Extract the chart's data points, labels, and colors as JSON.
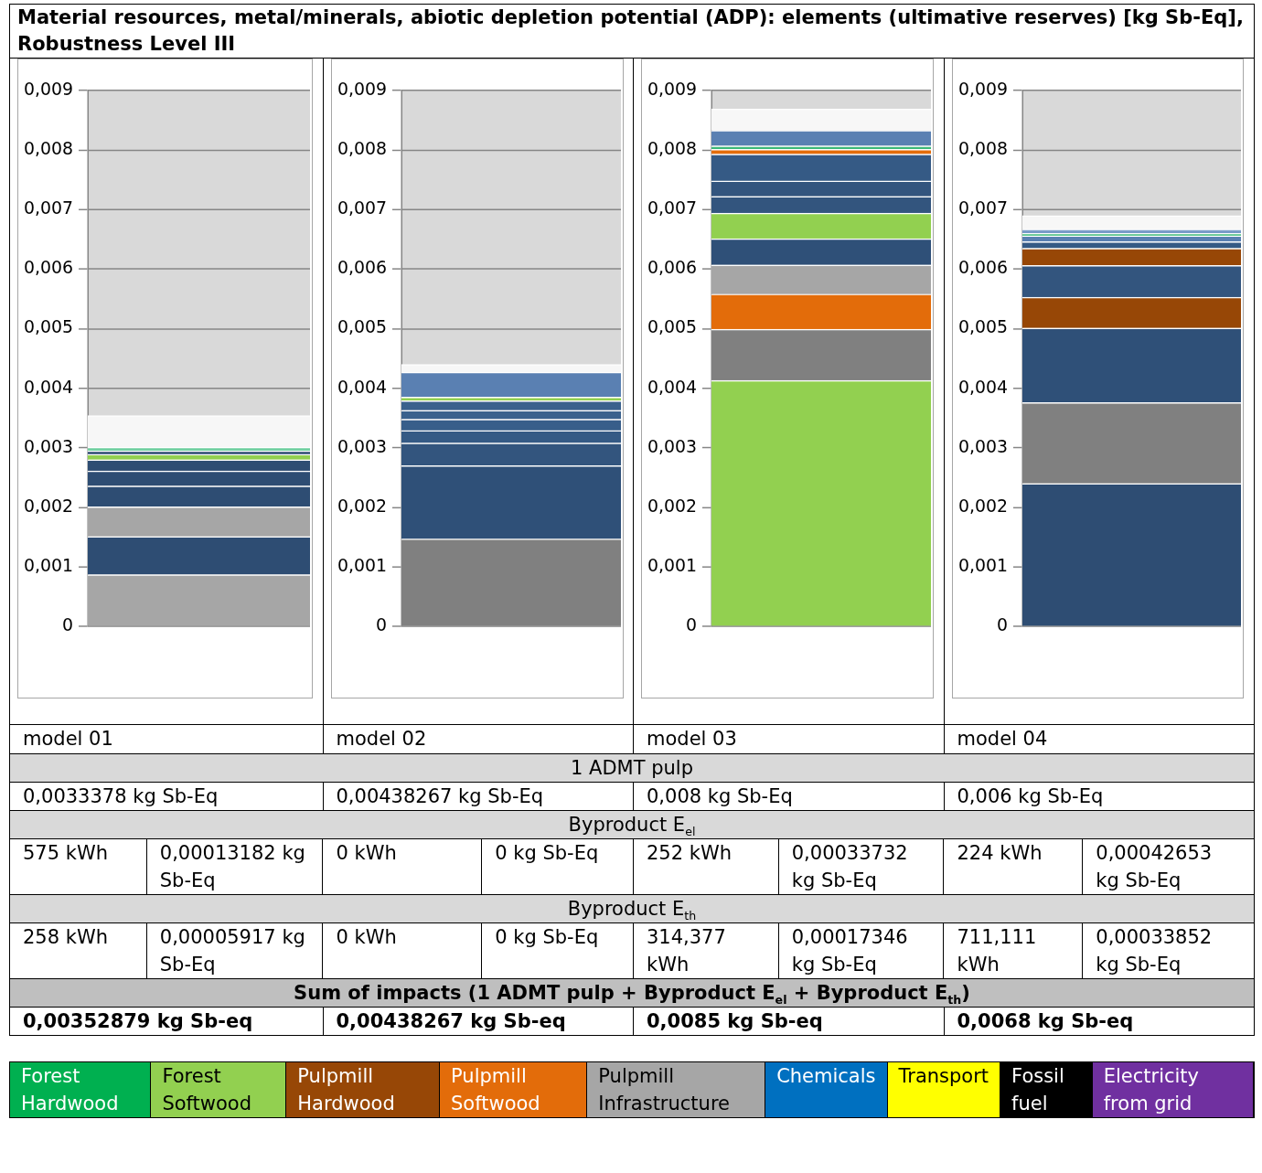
{
  "chart_data": [
    {
      "type": "bar",
      "title": "Material resources, metal/minerals, abiotic depletion potential (ADP): elements (ultimative reserves) [kg Sb-Eq], Robustness Level III",
      "xlabel": "model 01",
      "stacked": true,
      "categories": [
        null
      ],
      "ylim": [
        0,
        0.009
      ],
      "yticks": [
        {
          "value": 0,
          "label": "0"
        },
        {
          "value": 0.001,
          "label": "0,001"
        },
        {
          "value": 0.002,
          "label": "0,002"
        },
        {
          "value": 0.003,
          "label": "0,003"
        },
        {
          "value": 0.004,
          "label": "0,004"
        },
        {
          "value": 0.005,
          "label": "0,005"
        },
        {
          "value": 0.006,
          "label": "0,006"
        },
        {
          "value": 0.007,
          "label": "0,007"
        },
        {
          "value": 0.008,
          "label": "0,008"
        },
        {
          "value": 0.009,
          "label": "0,009"
        }
      ],
      "grid": "y",
      "tick_labels": "y",
      "series": [
        {
          "color": "#a6a6a6",
          "values": [
            0.00087
          ]
        },
        {
          "color": "#2e4d73",
          "values": [
            0.00064
          ]
        },
        {
          "color": "#a6a6a6",
          "values": [
            0.0005
          ]
        },
        {
          "color": "#2e4d73",
          "values": [
            0.00035
          ]
        },
        {
          "color": "#2e4d73",
          "values": [
            0.00025
          ]
        },
        {
          "color": "#2e4d73",
          "values": [
            0.00019
          ]
        },
        {
          "color": "#92d050",
          "values": [
            9e-05
          ]
        },
        {
          "color": "#2e4d73",
          "values": [
            6e-05
          ]
        },
        {
          "color": "#6fcf9f",
          "values": [
            6e-05
          ]
        },
        {
          "color": "#f7f7f7",
          "values": [
            0.00053
          ]
        }
      ]
    },
    {
      "type": "bar",
      "xlabel": "model 02",
      "stacked": true,
      "categories": [
        null
      ],
      "ylim": [
        0,
        0.009
      ],
      "yticks": [
        {
          "value": 0,
          "label": "0"
        },
        {
          "value": 0.001,
          "label": "0,001"
        },
        {
          "value": 0.002,
          "label": "0,002"
        },
        {
          "value": 0.003,
          "label": "0,003"
        },
        {
          "value": 0.004,
          "label": "0,004"
        },
        {
          "value": 0.005,
          "label": "0,005"
        },
        {
          "value": 0.006,
          "label": "0,006"
        },
        {
          "value": 0.007,
          "label": "0,007"
        },
        {
          "value": 0.008,
          "label": "0,008"
        },
        {
          "value": 0.009,
          "label": "0,009"
        }
      ],
      "grid": "y",
      "tick_labels": "y",
      "series": [
        {
          "color": "#808080",
          "values": [
            0.00147
          ]
        },
        {
          "color": "#2f5078",
          "values": [
            0.00123
          ]
        },
        {
          "color": "#33557e",
          "values": [
            0.00038
          ]
        },
        {
          "color": "#355a85",
          "values": [
            0.00021
          ]
        },
        {
          "color": "#385e8a",
          "values": [
            0.00019
          ]
        },
        {
          "color": "#3a618d",
          "values": [
            0.00015
          ]
        },
        {
          "color": "#3a618d",
          "values": [
            0.00016
          ]
        },
        {
          "color": "#92d050",
          "values": [
            6e-05
          ]
        },
        {
          "color": "#5a80b2",
          "values": [
            0.00042
          ]
        },
        {
          "color": "#f7f7f7",
          "values": [
            0.00013
          ]
        }
      ]
    },
    {
      "type": "bar",
      "xlabel": "model 03",
      "stacked": true,
      "categories": [
        null
      ],
      "ylim": [
        0,
        0.009
      ],
      "yticks": [
        {
          "value": 0,
          "label": "0"
        },
        {
          "value": 0.001,
          "label": "0,001"
        },
        {
          "value": 0.002,
          "label": "0,002"
        },
        {
          "value": 0.003,
          "label": "0,003"
        },
        {
          "value": 0.004,
          "label": "0,004"
        },
        {
          "value": 0.005,
          "label": "0,005"
        },
        {
          "value": 0.006,
          "label": "0,006"
        },
        {
          "value": 0.007,
          "label": "0,007"
        },
        {
          "value": 0.008,
          "label": "0,008"
        },
        {
          "value": 0.009,
          "label": "0,009"
        }
      ],
      "grid": "y",
      "tick_labels": "y",
      "series": [
        {
          "color": "#92d050",
          "values": [
            0.00413
          ]
        },
        {
          "color": "#808080",
          "values": [
            0.00086
          ]
        },
        {
          "color": "#e36c0a",
          "values": [
            0.00059
          ]
        },
        {
          "color": "#a6a6a6",
          "values": [
            0.00049
          ]
        },
        {
          "color": "#2f5078",
          "values": [
            0.00044
          ]
        },
        {
          "color": "#92d050",
          "values": [
            0.00043
          ]
        },
        {
          "color": "#33557e",
          "values": [
            0.00028
          ]
        },
        {
          "color": "#33557e",
          "values": [
            0.00026
          ]
        },
        {
          "color": "#355a85",
          "values": [
            0.00045
          ]
        },
        {
          "color": "#e36c0a",
          "values": [
            8e-05
          ]
        },
        {
          "color": "#3cb878",
          "values": [
            6e-05
          ]
        },
        {
          "color": "#5a80b2",
          "values": [
            0.00026
          ]
        },
        {
          "color": "#f7f7f7",
          "values": [
            0.00036
          ]
        }
      ]
    },
    {
      "type": "bar",
      "xlabel": "model 04",
      "stacked": true,
      "categories": [
        null
      ],
      "ylim": [
        0,
        0.009
      ],
      "yticks": [
        {
          "value": 0,
          "label": "0"
        },
        {
          "value": 0.001,
          "label": "0,001"
        },
        {
          "value": 0.002,
          "label": "0,002"
        },
        {
          "value": 0.003,
          "label": "0,003"
        },
        {
          "value": 0.004,
          "label": "0,004"
        },
        {
          "value": 0.005,
          "label": "0,005"
        },
        {
          "value": 0.006,
          "label": "0,006"
        },
        {
          "value": 0.007,
          "label": "0,007"
        },
        {
          "value": 0.008,
          "label": "0,008"
        },
        {
          "value": 0.009,
          "label": "0,009"
        }
      ],
      "grid": "y",
      "tick_labels": "y",
      "series": [
        {
          "color": "#2e4d73",
          "values": [
            0.0024
          ]
        },
        {
          "color": "#808080",
          "values": [
            0.00136
          ]
        },
        {
          "color": "#2f5078",
          "values": [
            0.00125
          ]
        },
        {
          "color": "#974706",
          "values": [
            0.00052
          ]
        },
        {
          "color": "#33557e",
          "values": [
            0.00053
          ]
        },
        {
          "color": "#974706",
          "values": [
            0.00029
          ]
        },
        {
          "color": "#355a85",
          "values": [
            0.00011
          ]
        },
        {
          "color": "#5a80b2",
          "values": [
            0.0001
          ]
        },
        {
          "color": "#3cb878",
          "values": [
            4e-05
          ]
        },
        {
          "color": "#7a9cc8",
          "values": [
            7e-05
          ]
        },
        {
          "color": "#f7f7f7",
          "values": [
            0.00023
          ]
        }
      ]
    },
    {
      "type": "other",
      "annotations": [
        "1 ADMT pulp",
        "0,0033378 kg Sb-Eq",
        "0,00438267 kg Sb-Eq",
        "0,008 kg Sb-Eq",
        "0,006 kg Sb-Eq",
        "Byproduct E$_{el}$",
        "575 kWh",
        "0,00013182 kg Sb-Eq",
        "0 kWh",
        "0 kg Sb-Eq",
        "252 kWh",
        "0,00033732 kg Sb-Eq",
        "224 kWh",
        "0,00042653 kg Sb-Eq",
        "Byproduct E$_{th}$",
        "258 kWh",
        "0,00005917 kg Sb-Eq",
        "0 kWh",
        "0 kg Sb-Eq",
        "314,377 kWh",
        "0,00017346 kg Sb-Eq",
        "711,111 kWh",
        "0,00033852 kg Sb-Eq",
        "Sum of impacts (1 ADMT pulp + Byproduct E$_{el}$ + Byproduct E$_{th}$)",
        "0,00352879 kg Sb-eq",
        "0,00438267 kg Sb-eq",
        "0,0085 kg Sb-eq",
        "0,0068 kg Sb-eq"
      ]
    },
    {
      "type": "other",
      "categories": [
        "Forest Hardwood",
        "Forest Softwood",
        "Pulpmill Hardwood",
        "Pulpmill Softwood",
        "Pulpmill Infrastructure",
        "Chemicals",
        "Transport",
        "Fossil fuel",
        "Electricity from grid"
      ],
      "colors": [
        "#00b050",
        "#92d050",
        "#974706",
        "#e36c0a",
        "#a6a6a6",
        "#0070c0",
        "#ffff00",
        "#000000",
        "#7030a0"
      ]
    }
  ]
}
